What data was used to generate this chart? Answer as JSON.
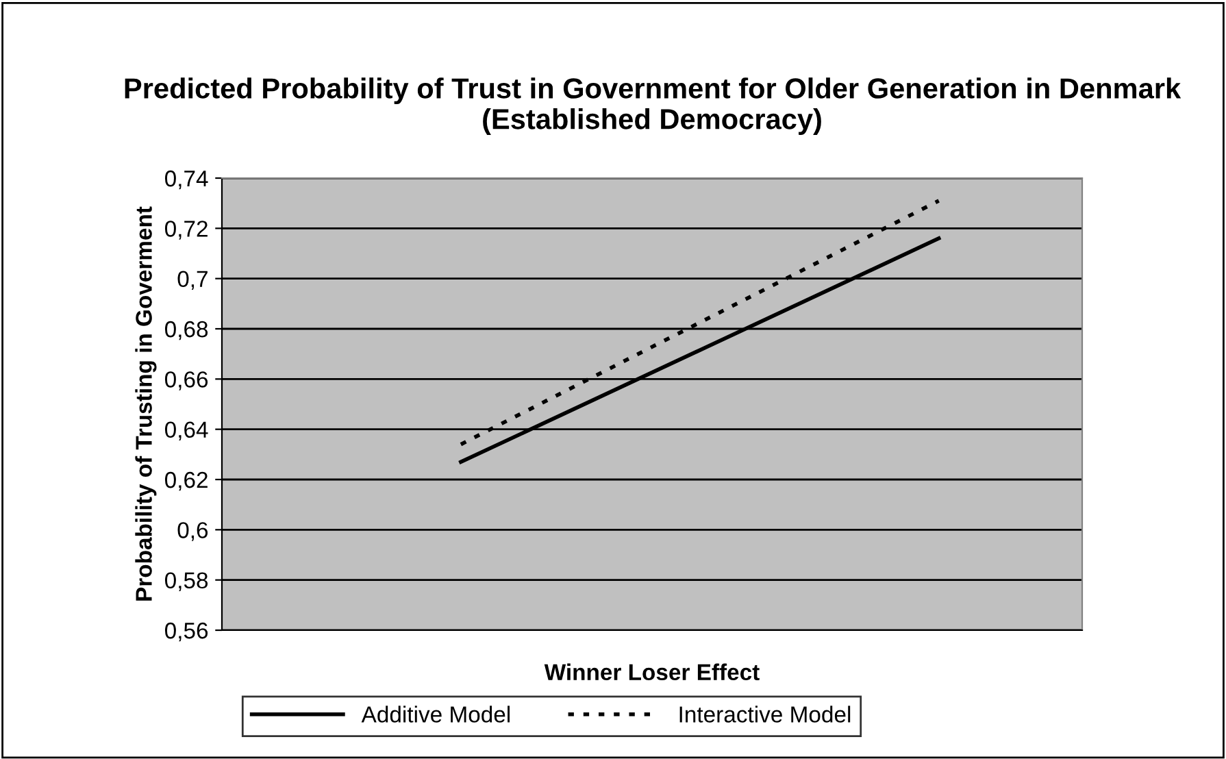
{
  "chart_data": {
    "type": "line",
    "title": "Predicted Probability of Trust in Government for Older Generation in Denmark (Established Democracy)",
    "xlabel": "Winner Loser Effect",
    "ylabel": "Probability of Trusting in Goverment",
    "categories": [
      null,
      null,
      null,
      null,
      null,
      null,
      null,
      null,
      null
    ],
    "series": [
      {
        "name": "Additive Model",
        "color": "#000000",
        "line_style": "solid",
        "values": [
          null,
          null,
          0.627,
          null,
          null,
          null,
          null,
          0.716,
          null
        ]
      },
      {
        "name": "Interactive Model",
        "color": "#000000",
        "line_style": "dotted",
        "values": [
          null,
          null,
          0.634,
          null,
          null,
          null,
          null,
          0.731,
          null
        ]
      }
    ],
    "ylim": [
      0.56,
      0.74
    ],
    "yticks": [
      {
        "value": 0.56,
        "label": "0,56"
      },
      {
        "value": 0.58,
        "label": "0,58"
      },
      {
        "value": 0.6,
        "label": "0,6"
      },
      {
        "value": 0.62,
        "label": "0,62"
      },
      {
        "value": 0.64,
        "label": "0,64"
      },
      {
        "value": 0.66,
        "label": "0,66"
      },
      {
        "value": 0.68,
        "label": "0,68"
      },
      {
        "value": 0.7,
        "label": "0,7"
      },
      {
        "value": 0.72,
        "label": "0,72"
      },
      {
        "value": 0.74,
        "label": "0,74"
      }
    ],
    "grid": "y",
    "legend": "bottom",
    "marker": "none"
  }
}
